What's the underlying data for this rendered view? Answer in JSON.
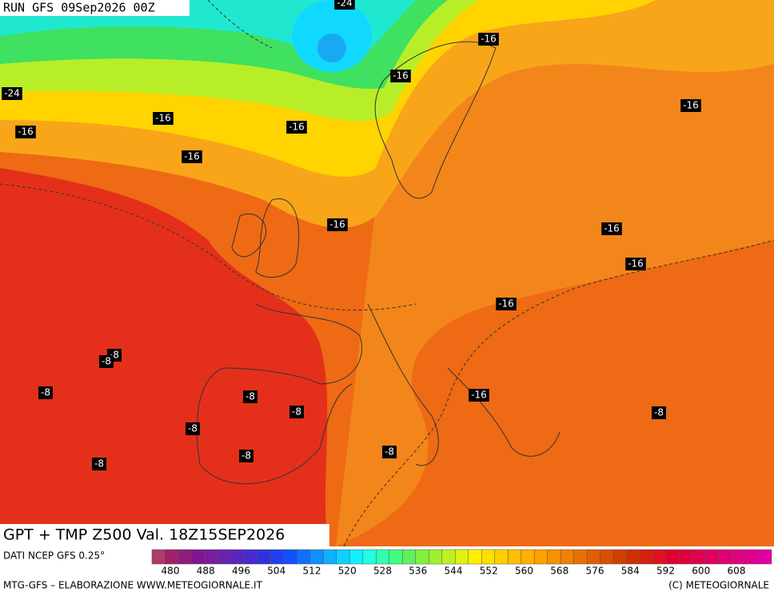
{
  "header": "RUN GFS 09Sep2026 00Z",
  "isotherm_labels": [
    "-24",
    "-16",
    "-16",
    "-24",
    "-16",
    "-16",
    "-16",
    "-16",
    "-16",
    "-16",
    "-16",
    "-16",
    "-16",
    "-8",
    "-8",
    "-8",
    "-8",
    "-16",
    "-8",
    "-8",
    "-8",
    "-8",
    "-8",
    "-8"
  ],
  "footer": {
    "title": "GPT + TMP Z500 Val. 18Z15SEP2026",
    "source": "DATI NCEP GFS 0.25°",
    "credit": "MTG-GFS – ELABORAZIONE WWW.METEOGIORNALE.IT",
    "copyright": "(C) METEOGIORNALE"
  },
  "legend": {
    "colors": [
      "#b03a6a",
      "#a0206a",
      "#901a80",
      "#80168f",
      "#7a1ca0",
      "#6a20b0",
      "#5a24c0",
      "#4828d0",
      "#3030e0",
      "#2040f0",
      "#1050ff",
      "#1070ff",
      "#1090ff",
      "#10b0ff",
      "#10d0ff",
      "#10f0ff",
      "#20ffe0",
      "#30ffb0",
      "#40ff80",
      "#60f060",
      "#80f040",
      "#a0f030",
      "#c0f020",
      "#e0f010",
      "#fff000",
      "#ffe000",
      "#ffd000",
      "#ffc000",
      "#ffb000",
      "#ffa000",
      "#f89000",
      "#f08000",
      "#e87000",
      "#e06000",
      "#d85000",
      "#d04000",
      "#d03000",
      "#d82010",
      "#e01020",
      "#e00030",
      "#e00040",
      "#e00050",
      "#e00060",
      "#e00070",
      "#e00080",
      "#e00090",
      "#e000a0"
    ],
    "ticks": [
      480,
      488,
      496,
      504,
      512,
      520,
      528,
      536,
      544,
      552,
      560,
      568,
      576,
      584,
      592,
      600,
      608
    ]
  }
}
